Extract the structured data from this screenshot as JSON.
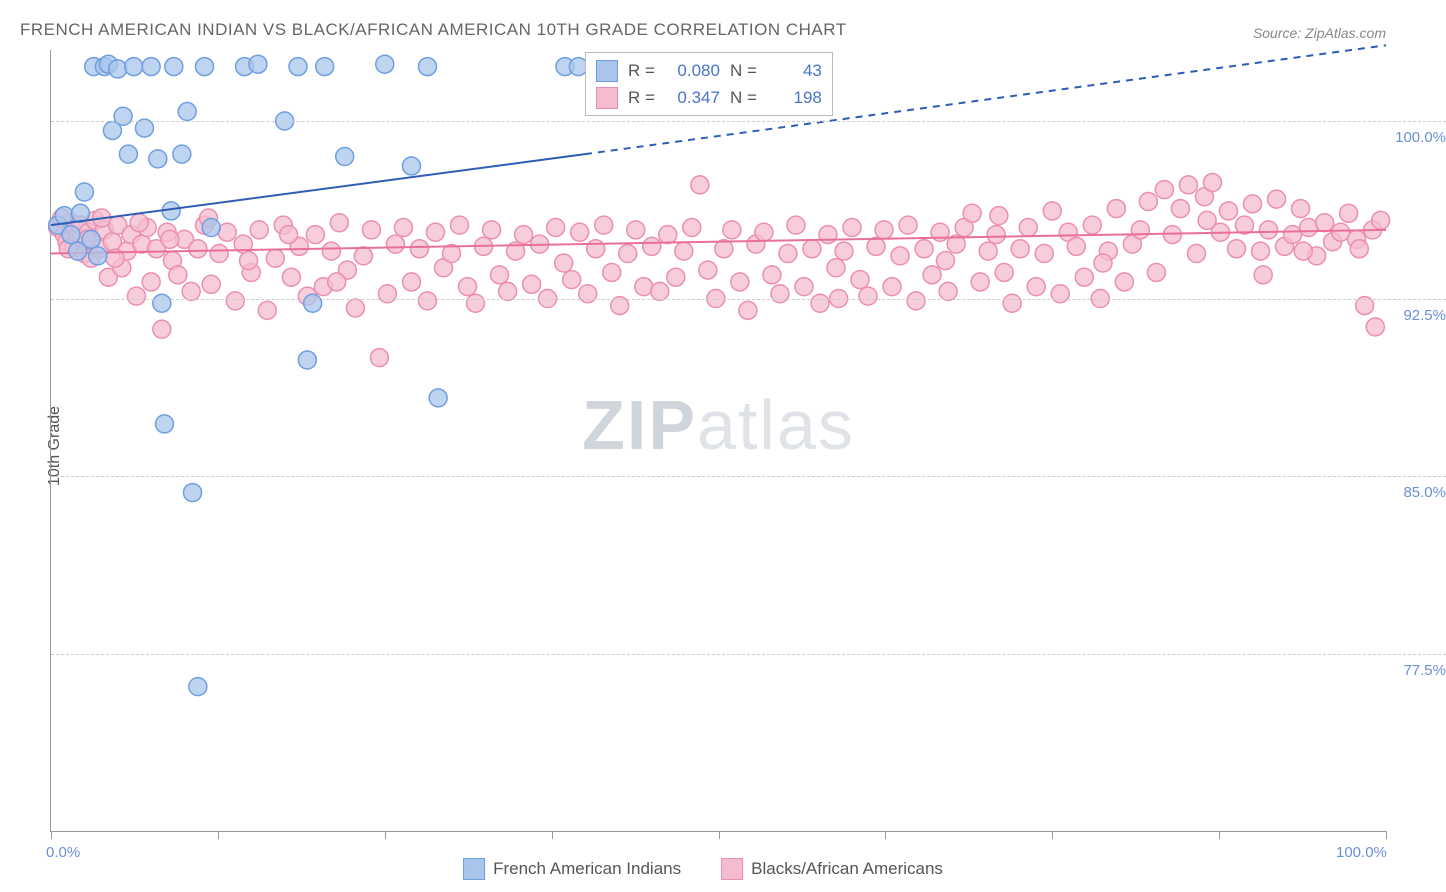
{
  "header": {
    "title": "FRENCH AMERICAN INDIAN VS BLACK/AFRICAN AMERICAN 10TH GRADE CORRELATION CHART",
    "source_label": "Source: ZipAtlas.com"
  },
  "watermark": {
    "bold": "ZIP",
    "light": "atlas"
  },
  "axes": {
    "ylabel": "10th Grade",
    "xlim": [
      0,
      100
    ],
    "ylim": [
      70,
      103
    ],
    "yticks": [
      77.5,
      85.0,
      92.5,
      100.0
    ],
    "ytick_labels": [
      "77.5%",
      "85.0%",
      "92.5%",
      "100.0%"
    ],
    "xticks": [
      0,
      12.5,
      25,
      37.5,
      50,
      62.5,
      75,
      87.5,
      100
    ],
    "xtick_labels": {
      "0": "0.0%",
      "100": "100.0%"
    },
    "grid_color": "#cccccc",
    "axis_color": "#999999"
  },
  "legend_top": {
    "rows": [
      {
        "swatch_fill": "#a9c5ec",
        "swatch_stroke": "#6f9fe0",
        "r_label": "R =",
        "r": "0.080",
        "n_label": "N =",
        "n": "43"
      },
      {
        "swatch_fill": "#f5bccd",
        "swatch_stroke": "#eb8fb0",
        "r_label": "R =",
        "r": "0.347",
        "n_label": "N =",
        "n": "198"
      }
    ]
  },
  "legend_bottom": {
    "items": [
      {
        "swatch_fill": "#a9c5ec",
        "swatch_stroke": "#6f9fe0",
        "label": "French American Indians"
      },
      {
        "swatch_fill": "#f5bccd",
        "swatch_stroke": "#eb8fb0",
        "label": "Blacks/African Americans"
      }
    ]
  },
  "series": {
    "blue": {
      "marker_fill": "#a9c5ec",
      "marker_stroke": "#6f9fe0",
      "marker_opacity": 0.75,
      "marker_r": 9,
      "line_color": "#2e5db3",
      "line_width": 2,
      "trend": {
        "x1": 0,
        "y1": 95.6,
        "x2": 40,
        "y2": 98.6,
        "dash_x2": 100,
        "dash_y2": 103.2
      },
      "points": [
        [
          0.5,
          95.6
        ],
        [
          1.0,
          96.0
        ],
        [
          1.5,
          95.2
        ],
        [
          2.0,
          94.5
        ],
        [
          2.2,
          96.1
        ],
        [
          2.5,
          97.0
        ],
        [
          3.0,
          95.0
        ],
        [
          3.5,
          94.3
        ],
        [
          3.2,
          102.3
        ],
        [
          4.0,
          102.3
        ],
        [
          4.3,
          102.4
        ],
        [
          4.6,
          99.6
        ],
        [
          5.0,
          102.2
        ],
        [
          5.4,
          100.2
        ],
        [
          5.8,
          98.6
        ],
        [
          6.2,
          102.3
        ],
        [
          7.0,
          99.7
        ],
        [
          7.5,
          102.3
        ],
        [
          8.0,
          98.4
        ],
        [
          8.3,
          92.3
        ],
        [
          8.5,
          87.2
        ],
        [
          9.0,
          96.2
        ],
        [
          9.2,
          102.3
        ],
        [
          9.8,
          98.6
        ],
        [
          10.2,
          100.4
        ],
        [
          10.6,
          84.3
        ],
        [
          11.0,
          76.1
        ],
        [
          11.5,
          102.3
        ],
        [
          12.0,
          95.5
        ],
        [
          14.5,
          102.3
        ],
        [
          15.5,
          102.4
        ],
        [
          17.5,
          100.0
        ],
        [
          18.5,
          102.3
        ],
        [
          19.2,
          89.9
        ],
        [
          19.6,
          92.3
        ],
        [
          20.5,
          102.3
        ],
        [
          22.0,
          98.5
        ],
        [
          25.0,
          102.4
        ],
        [
          27.0,
          98.1
        ],
        [
          28.2,
          102.3
        ],
        [
          29.0,
          88.3
        ],
        [
          38.5,
          102.3
        ],
        [
          39.5,
          102.3
        ]
      ]
    },
    "pink": {
      "marker_fill": "#f5bccd",
      "marker_stroke": "#eb8fb0",
      "marker_opacity": 0.75,
      "marker_r": 9,
      "line_color": "#e96f9b",
      "line_width": 2,
      "trend": {
        "x1": 0,
        "y1": 94.4,
        "x2": 100,
        "y2": 95.4
      },
      "points": [
        [
          0.5,
          95.5
        ],
        [
          1.0,
          95.2
        ],
        [
          1.2,
          94.9
        ],
        [
          1.5,
          95.7
        ],
        [
          1.7,
          94.7
        ],
        [
          2.0,
          95.1
        ],
        [
          2.2,
          95.6
        ],
        [
          2.5,
          94.4
        ],
        [
          2.8,
          95.3
        ],
        [
          3.0,
          94.2
        ],
        [
          3.3,
          95.8
        ],
        [
          3.6,
          94.6
        ],
        [
          4.0,
          95.4
        ],
        [
          4.3,
          93.4
        ],
        [
          4.6,
          94.9
        ],
        [
          5.0,
          95.6
        ],
        [
          5.3,
          93.8
        ],
        [
          5.7,
          94.5
        ],
        [
          6.0,
          95.2
        ],
        [
          6.4,
          92.6
        ],
        [
          6.8,
          94.8
        ],
        [
          7.2,
          95.5
        ],
        [
          7.5,
          93.2
        ],
        [
          7.9,
          94.6
        ],
        [
          8.3,
          91.2
        ],
        [
          8.7,
          95.3
        ],
        [
          9.1,
          94.1
        ],
        [
          9.5,
          93.5
        ],
        [
          10.0,
          95.0
        ],
        [
          10.5,
          92.8
        ],
        [
          11.0,
          94.6
        ],
        [
          11.5,
          95.6
        ],
        [
          12.0,
          93.1
        ],
        [
          12.6,
          94.4
        ],
        [
          13.2,
          95.3
        ],
        [
          13.8,
          92.4
        ],
        [
          14.4,
          94.8
        ],
        [
          15.0,
          93.6
        ],
        [
          15.6,
          95.4
        ],
        [
          16.2,
          92.0
        ],
        [
          16.8,
          94.2
        ],
        [
          17.4,
          95.6
        ],
        [
          18.0,
          93.4
        ],
        [
          18.6,
          94.7
        ],
        [
          19.2,
          92.6
        ],
        [
          19.8,
          95.2
        ],
        [
          20.4,
          93.0
        ],
        [
          21.0,
          94.5
        ],
        [
          21.6,
          95.7
        ],
        [
          22.2,
          93.7
        ],
        [
          22.8,
          92.1
        ],
        [
          23.4,
          94.3
        ],
        [
          24.0,
          95.4
        ],
        [
          24.6,
          90.0
        ],
        [
          25.2,
          92.7
        ],
        [
          25.8,
          94.8
        ],
        [
          26.4,
          95.5
        ],
        [
          27.0,
          93.2
        ],
        [
          27.6,
          94.6
        ],
        [
          28.2,
          92.4
        ],
        [
          28.8,
          95.3
        ],
        [
          29.4,
          93.8
        ],
        [
          30.0,
          94.4
        ],
        [
          30.6,
          95.6
        ],
        [
          31.2,
          93.0
        ],
        [
          31.8,
          92.3
        ],
        [
          32.4,
          94.7
        ],
        [
          33.0,
          95.4
        ],
        [
          33.6,
          93.5
        ],
        [
          34.2,
          92.8
        ],
        [
          34.8,
          94.5
        ],
        [
          35.4,
          95.2
        ],
        [
          36.0,
          93.1
        ],
        [
          36.6,
          94.8
        ],
        [
          37.2,
          92.5
        ],
        [
          37.8,
          95.5
        ],
        [
          38.4,
          94.0
        ],
        [
          39.0,
          93.3
        ],
        [
          39.6,
          95.3
        ],
        [
          40.2,
          92.7
        ],
        [
          40.8,
          94.6
        ],
        [
          41.4,
          95.6
        ],
        [
          42.0,
          93.6
        ],
        [
          42.6,
          92.2
        ],
        [
          43.2,
          94.4
        ],
        [
          43.8,
          95.4
        ],
        [
          44.4,
          93.0
        ],
        [
          45.0,
          94.7
        ],
        [
          45.6,
          92.8
        ],
        [
          46.2,
          95.2
        ],
        [
          46.8,
          93.4
        ],
        [
          47.4,
          94.5
        ],
        [
          48.0,
          95.5
        ],
        [
          48.6,
          97.3
        ],
        [
          49.2,
          93.7
        ],
        [
          49.8,
          92.5
        ],
        [
          50.4,
          94.6
        ],
        [
          51.0,
          95.4
        ],
        [
          51.6,
          93.2
        ],
        [
          52.2,
          92.0
        ],
        [
          52.8,
          94.8
        ],
        [
          53.4,
          95.3
        ],
        [
          54.0,
          93.5
        ],
        [
          54.6,
          92.7
        ],
        [
          55.2,
          94.4
        ],
        [
          55.8,
          95.6
        ],
        [
          56.4,
          93.0
        ],
        [
          57.0,
          94.6
        ],
        [
          57.6,
          92.3
        ],
        [
          58.2,
          95.2
        ],
        [
          58.8,
          93.8
        ],
        [
          59.4,
          94.5
        ],
        [
          60.0,
          95.5
        ],
        [
          60.6,
          93.3
        ],
        [
          61.2,
          92.6
        ],
        [
          61.8,
          94.7
        ],
        [
          62.4,
          95.4
        ],
        [
          63.0,
          93.0
        ],
        [
          63.6,
          94.3
        ],
        [
          64.2,
          95.6
        ],
        [
          64.8,
          92.4
        ],
        [
          65.4,
          94.6
        ],
        [
          66.0,
          93.5
        ],
        [
          66.6,
          95.3
        ],
        [
          67.2,
          92.8
        ],
        [
          67.8,
          94.8
        ],
        [
          68.4,
          95.5
        ],
        [
          69.0,
          96.1
        ],
        [
          69.6,
          93.2
        ],
        [
          70.2,
          94.5
        ],
        [
          70.8,
          95.2
        ],
        [
          71.4,
          93.6
        ],
        [
          72.0,
          92.3
        ],
        [
          72.6,
          94.6
        ],
        [
          73.2,
          95.5
        ],
        [
          73.8,
          93.0
        ],
        [
          74.4,
          94.4
        ],
        [
          75.0,
          96.2
        ],
        [
          75.6,
          92.7
        ],
        [
          76.2,
          95.3
        ],
        [
          76.8,
          94.7
        ],
        [
          77.4,
          93.4
        ],
        [
          78.0,
          95.6
        ],
        [
          78.6,
          92.5
        ],
        [
          79.2,
          94.5
        ],
        [
          79.8,
          96.3
        ],
        [
          80.4,
          93.2
        ],
        [
          81.0,
          94.8
        ],
        [
          81.6,
          95.4
        ],
        [
          82.2,
          96.6
        ],
        [
          82.8,
          93.6
        ],
        [
          83.4,
          97.1
        ],
        [
          84.0,
          95.2
        ],
        [
          84.6,
          96.3
        ],
        [
          85.2,
          97.3
        ],
        [
          85.8,
          94.4
        ],
        [
          86.4,
          96.8
        ],
        [
          87.0,
          97.4
        ],
        [
          87.6,
          95.3
        ],
        [
          88.2,
          96.2
        ],
        [
          88.8,
          94.6
        ],
        [
          89.4,
          95.6
        ],
        [
          90.0,
          96.5
        ],
        [
          90.6,
          94.5
        ],
        [
          91.2,
          95.4
        ],
        [
          91.8,
          96.7
        ],
        [
          92.4,
          94.7
        ],
        [
          93.0,
          95.2
        ],
        [
          93.6,
          96.3
        ],
        [
          94.2,
          95.5
        ],
        [
          94.8,
          94.3
        ],
        [
          95.4,
          95.7
        ],
        [
          96.0,
          94.9
        ],
        [
          96.6,
          95.3
        ],
        [
          97.2,
          96.1
        ],
        [
          97.8,
          95.0
        ],
        [
          98.4,
          92.2
        ],
        [
          99.0,
          95.4
        ],
        [
          99.6,
          95.8
        ],
        [
          0.8,
          95.9
        ],
        [
          1.3,
          94.6
        ],
        [
          2.7,
          95.0
        ],
        [
          3.8,
          95.9
        ],
        [
          4.8,
          94.2
        ],
        [
          6.6,
          95.7
        ],
        [
          8.9,
          95.0
        ],
        [
          11.8,
          95.9
        ],
        [
          14.8,
          94.1
        ],
        [
          17.8,
          95.2
        ],
        [
          21.4,
          93.2
        ],
        [
          59.0,
          92.5
        ],
        [
          67.0,
          94.1
        ],
        [
          71.0,
          96.0
        ],
        [
          78.8,
          94.0
        ],
        [
          86.6,
          95.8
        ],
        [
          90.8,
          93.5
        ],
        [
          93.8,
          94.5
        ],
        [
          98.0,
          94.6
        ],
        [
          99.2,
          91.3
        ]
      ]
    }
  }
}
